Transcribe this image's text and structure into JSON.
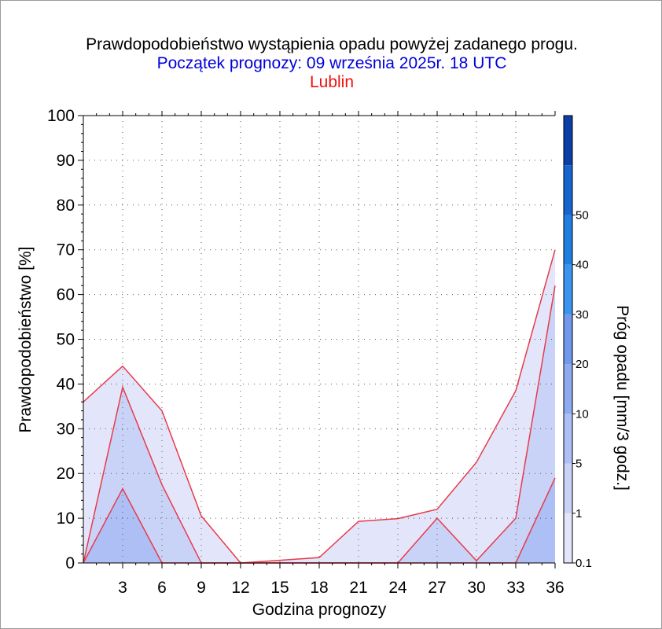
{
  "title": {
    "line1": "Prawdopodobieństwo wystąpienia opadu powyżej zadanego progu.",
    "line2": "Początek prognozy: 09 września 2025r. 18 UTC",
    "line3": "Lublin"
  },
  "colors": {
    "title1": "#000000",
    "title2": "#0000dd",
    "title3": "#ee1111",
    "series_line": "#e83a4a",
    "band_01": "#e3e6fa",
    "band_1": "#c9d3f7",
    "band_5": "#aebff5",
    "band_10": "#8eaaf1",
    "band_20": "#7198ec",
    "band_30": "#3b94ee",
    "band_40": "#1f7fe0",
    "band_50": "#1565d1",
    "band_top": "#0b3fa6"
  },
  "chart_data": {
    "type": "area",
    "xlabel": "Godzina prognozy",
    "ylabel": "Prawdopodobieństwo [%]",
    "x": [
      0,
      3,
      6,
      9,
      12,
      15,
      18,
      21,
      24,
      27,
      30,
      33,
      36
    ],
    "x_ticks": [
      3,
      6,
      9,
      12,
      15,
      18,
      21,
      24,
      27,
      30,
      33,
      36
    ],
    "ylim": [
      0,
      100
    ],
    "y_ticks": [
      0,
      10,
      20,
      30,
      40,
      50,
      60,
      70,
      80,
      90,
      100
    ],
    "grid": true,
    "series": [
      {
        "threshold": 0.1,
        "values": [
          36,
          44,
          34,
          10.5,
          0,
          0.6,
          1.2,
          9.3,
          9.9,
          12,
          22.5,
          38.5,
          70
        ]
      },
      {
        "threshold": 1,
        "values": [
          0,
          39.3,
          17.5,
          0,
          0,
          0,
          0,
          0,
          0,
          10,
          0.5,
          10,
          62
        ]
      },
      {
        "threshold": 5,
        "values": [
          0,
          16.6,
          0,
          0,
          0,
          0,
          0,
          0,
          0,
          0,
          0,
          0,
          19
        ]
      }
    ],
    "colorbar": {
      "label": "Próg opadu [mm/3 godz.]",
      "tick_labels": [
        "0.1",
        "1",
        "5",
        "10",
        "20",
        "30",
        "40",
        "50"
      ]
    }
  }
}
